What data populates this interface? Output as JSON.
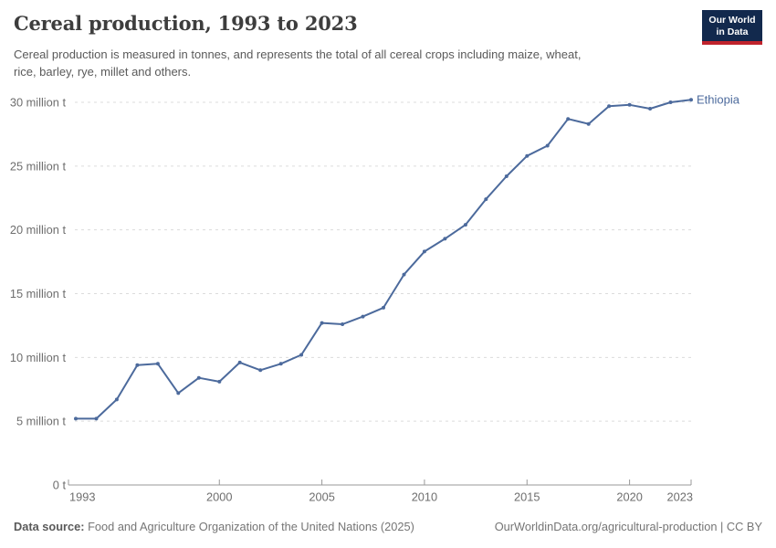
{
  "header": {
    "title": "Cereal production, 1993 to 2023",
    "subtitle_lines": [
      "Cereal production is measured in tonnes, and represents the total of all cereal crops including maize, wheat,",
      "rice, barley, rye, millet and others."
    ]
  },
  "logo": {
    "lines": [
      "Our World",
      "in Data"
    ],
    "bg_color": "#12294d",
    "stripe_color": "#c0232c",
    "text_color": "#ffffff"
  },
  "chart_data": {
    "type": "line",
    "title": "Cereal production, 1993 to 2023",
    "unit": "tonnes",
    "values_in": "million tonnes",
    "xlim": [
      1993,
      2023
    ],
    "ylim": [
      0,
      30
    ],
    "grid": "horizontal-dashed",
    "legend_position": "end-of-line-label",
    "x_ticks": [
      1993,
      2000,
      2005,
      2010,
      2015,
      2020,
      2023
    ],
    "y_ticks": [
      {
        "value": 0,
        "label": "0 t"
      },
      {
        "value": 5,
        "label": "5 million t"
      },
      {
        "value": 10,
        "label": "10 million t"
      },
      {
        "value": 15,
        "label": "15 million t"
      },
      {
        "value": 20,
        "label": "20 million t"
      },
      {
        "value": 25,
        "label": "25 million t"
      },
      {
        "value": 30,
        "label": "30 million t"
      }
    ],
    "series": [
      {
        "name": "Ethiopia",
        "color": "#4c6a9c",
        "x": [
          1993,
          1994,
          1995,
          1996,
          1997,
          1998,
          1999,
          2000,
          2001,
          2002,
          2003,
          2004,
          2005,
          2006,
          2007,
          2008,
          2009,
          2010,
          2011,
          2012,
          2013,
          2014,
          2015,
          2016,
          2017,
          2018,
          2019,
          2020,
          2021,
          2022,
          2023
        ],
        "values": [
          5.2,
          5.2,
          6.7,
          9.4,
          9.5,
          7.2,
          8.4,
          8.1,
          9.6,
          9.0,
          9.5,
          10.2,
          12.7,
          12.6,
          13.2,
          13.9,
          16.5,
          18.3,
          19.3,
          20.4,
          22.4,
          24.2,
          25.8,
          26.6,
          28.7,
          28.3,
          29.7,
          29.8,
          29.5,
          30.0,
          30.2
        ]
      }
    ]
  },
  "footer": {
    "source_label": "Data source:",
    "source_text": "Food and Agriculture Organization of the United Nations (2025)",
    "url": "OurWorldinData.org/agricultural-production",
    "separator": " | ",
    "license": "CC BY"
  },
  "colors": {
    "line": "#4c6a9c",
    "grid": "#dcdcdc",
    "axis": "#999999",
    "tick_text": "#6e6e6e",
    "title_text": "#3d3d3d",
    "subtitle_text": "#5a5a5a",
    "footer_text": "#757575"
  }
}
